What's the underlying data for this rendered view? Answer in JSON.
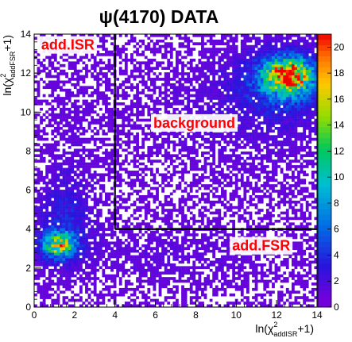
{
  "chart_data": {
    "type": "heatmap",
    "title": "ψ(4170) DATA",
    "xlabel": {
      "main": "ln(χ",
      "sup": "2",
      "sub": "addISR",
      "tail": "+1)"
    },
    "ylabel": {
      "main": "ln(χ",
      "sup": "2",
      "sub": "addFSR",
      "tail": "+1)"
    },
    "xlim": [
      0,
      14
    ],
    "ylim": [
      0,
      14
    ],
    "x_ticks": [
      "0",
      "2",
      "4",
      "6",
      "8",
      "10",
      "12",
      "14"
    ],
    "y_ticks": [
      "0",
      "2",
      "4",
      "6",
      "8",
      "10",
      "12",
      "14"
    ],
    "z_range": [
      0,
      21
    ],
    "z_ticks": [
      "0",
      "2",
      "4",
      "6",
      "8",
      "10",
      "12",
      "14",
      "16",
      "18",
      "20"
    ],
    "bins": 100,
    "density_components": [
      {
        "cx": 1.2,
        "cy": 3.2,
        "sx": 0.55,
        "sy": 0.45,
        "amp": 13
      },
      {
        "cx": 1.5,
        "cy": 4.5,
        "sx": 0.9,
        "sy": 1.6,
        "amp": 2.5
      },
      {
        "cx": 12.6,
        "cy": 11.9,
        "sx": 0.75,
        "sy": 0.55,
        "amp": 17
      },
      {
        "cx": 12.3,
        "cy": 11.5,
        "sx": 1.4,
        "sy": 1.1,
        "amp": 5
      },
      {
        "cx": 10.5,
        "cy": 10.0,
        "sx": 4.0,
        "sy": 3.0,
        "amp": 1.2
      },
      {
        "cx": 7.0,
        "cy": 2.5,
        "sx": 5.0,
        "sy": 1.5,
        "amp": 0.9
      },
      {
        "cx": 2.0,
        "cy": 9.0,
        "sx": 1.5,
        "sy": 4.0,
        "amp": 0.6
      }
    ],
    "background_level": 0.35,
    "cut_lines": {
      "x": 4,
      "y": 4
    },
    "regions": [
      {
        "name": "add-isr",
        "label": "add.ISR",
        "x": 0.35,
        "y": 13.2
      },
      {
        "name": "background",
        "label": "background",
        "x": 5.9,
        "y": 9.2
      },
      {
        "name": "add-fsr",
        "label": "add.FSR",
        "x": 9.8,
        "y": 2.9
      }
    ],
    "colorbar": true,
    "grid": false,
    "legend": "none"
  }
}
